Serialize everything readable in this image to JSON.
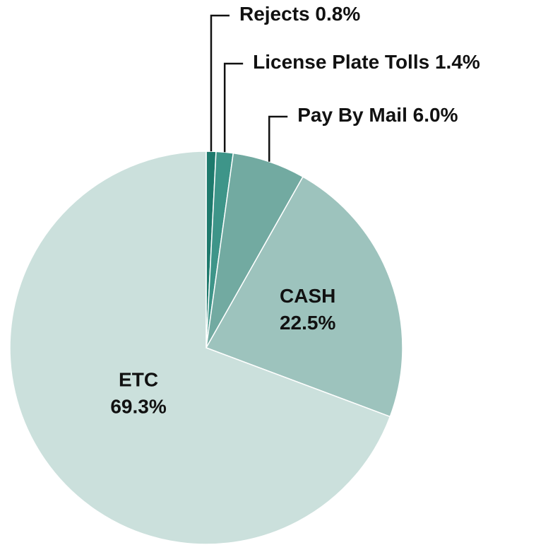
{
  "chart_data": {
    "type": "pie",
    "categories": [
      "Rejects",
      "License Plate Tolls",
      "Pay By Mail",
      "CASH",
      "ETC"
    ],
    "values": [
      0.8,
      1.4,
      6.0,
      22.5,
      69.3
    ],
    "value_labels": [
      "0.8%",
      "1.4%",
      "6.0%",
      "22.5%",
      "69.3%"
    ],
    "colors": [
      "#1e7a6d",
      "#3e9589",
      "#72aaa1",
      "#9dc3bd",
      "#cbe0dc"
    ]
  }
}
